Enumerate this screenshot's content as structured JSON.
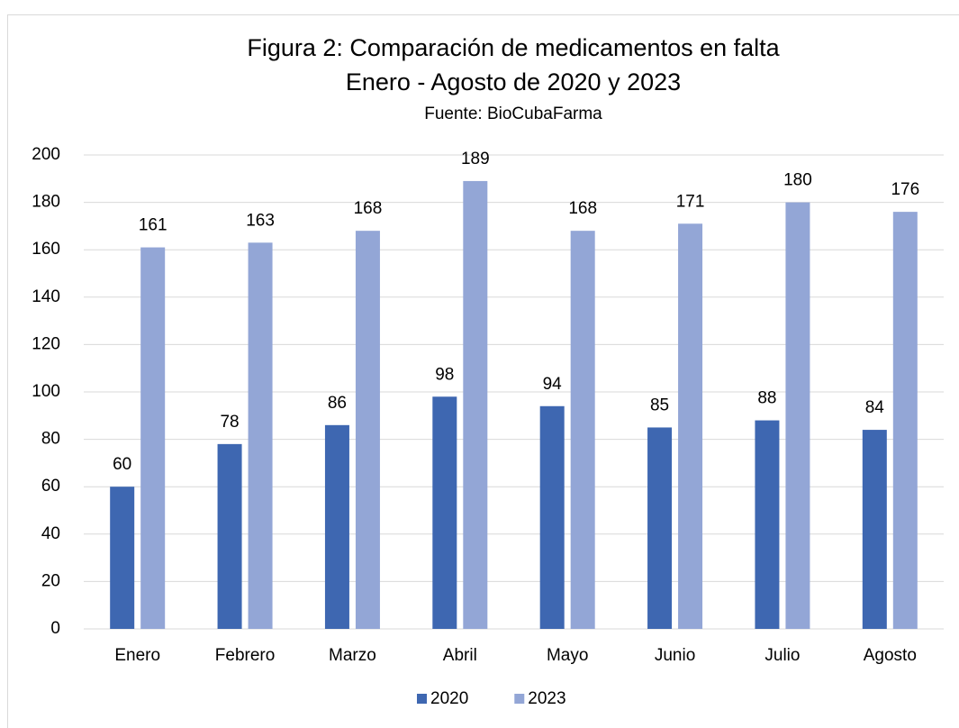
{
  "chart_data": {
    "type": "bar",
    "title": [
      "Figura 2: Comparación de medicamentos en falta",
      "Enero - Agosto de 2020 y 2023"
    ],
    "subtitle": "Fuente: BioCubaFarma",
    "categories": [
      "Enero",
      "Febrero",
      "Marzo",
      "Abril",
      "Mayo",
      "Junio",
      "Julio",
      "Agosto"
    ],
    "series": [
      {
        "name": "2020",
        "color": "#3e67b1",
        "values": [
          60,
          78,
          86,
          98,
          94,
          85,
          88,
          84
        ]
      },
      {
        "name": "2023",
        "color": "#93a6d6",
        "values": [
          161,
          163,
          168,
          189,
          168,
          171,
          180,
          176
        ]
      }
    ],
    "ylim": [
      0,
      200
    ],
    "yticks": [
      0,
      20,
      40,
      60,
      80,
      100,
      120,
      140,
      160,
      180,
      200
    ],
    "grid": true,
    "legend": "bottom",
    "data_labels": true
  }
}
